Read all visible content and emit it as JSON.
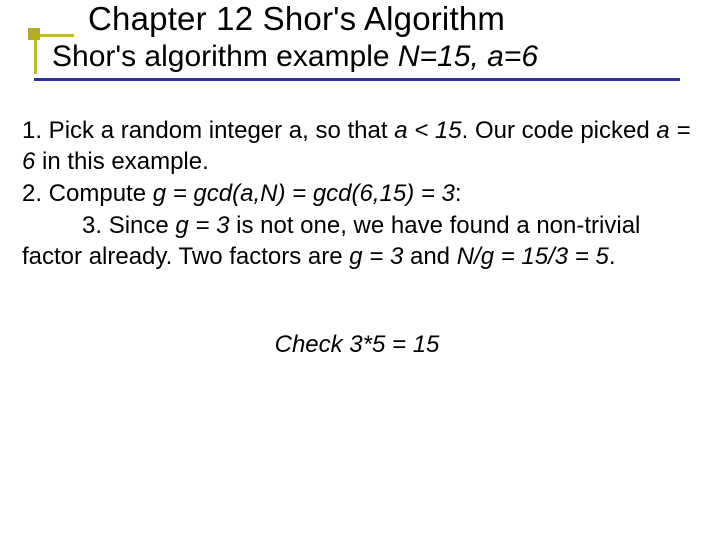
{
  "colors": {
    "accent_border": "#bfb740",
    "accent_square": "#b3aa2f",
    "underline": "#31319c",
    "text": "#000000",
    "background": "#ffffff"
  },
  "typography": {
    "title_fontsize": 33,
    "subtitle_fontsize": 30,
    "body_fontsize": 24,
    "font_family": "Verdana"
  },
  "header": {
    "chapter_title": "Chapter 12 Shor's Algorithm",
    "subtitle_plain": "Shor's algorithm example ",
    "subtitle_italic": "N=15, a=6"
  },
  "body": {
    "line1a": "1. Pick a random integer a, so that ",
    "line1b": "a < 15",
    "line1c": ". Our code picked ",
    "line1d": "a = 6",
    "line1e": "  in this example.",
    "line2a": "2. Compute ",
    "line2b": "g = gcd(a,N) = gcd(6,15) = 3",
    "line2c": ":",
    "line3pad": "         ",
    "line3a": "3. Since ",
    "line3b": "g = 3",
    "line3c": "  is not one, we have found a non-trivial factor already. Two factors are ",
    "line3d": "g = 3",
    "line3e": "  and ",
    "line3f": "N/g = 15/3 = 5",
    "line3g": "."
  },
  "footer": {
    "check": "Check 3*5 = 15"
  }
}
